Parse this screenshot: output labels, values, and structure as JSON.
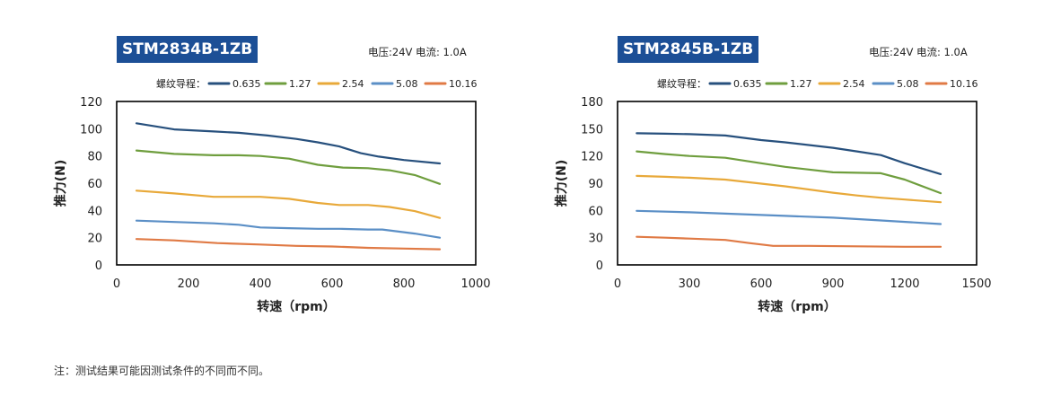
{
  "note": "注：测试结果可能因测试条件的不同而不同。",
  "legend_prefix": "螺纹导程：",
  "charts": [
    {
      "type": "line",
      "title": "STM2834B-1ZB",
      "spec": "电压:24V  电流: 1.0A",
      "xlabel": "转速（rpm）",
      "ylabel": "推力(N)",
      "xlim": [
        0,
        1000
      ],
      "ylim": [
        0,
        120
      ],
      "xticks": [
        0,
        200,
        400,
        600,
        800,
        1000
      ],
      "yticks": [
        0,
        20,
        40,
        60,
        80,
        100,
        120
      ],
      "grid": false,
      "legend": "top",
      "series": [
        {
          "name": "0.635",
          "color": "#27507d",
          "x": [
            55,
            160,
            270,
            340,
            420,
            500,
            560,
            620,
            680,
            730,
            800,
            900
          ],
          "y": [
            104,
            99.5,
            98,
            97,
            95,
            92.5,
            90,
            87,
            82,
            79.5,
            77,
            74.5
          ]
        },
        {
          "name": "1.27",
          "color": "#6f9e3e",
          "x": [
            55,
            160,
            270,
            340,
            400,
            480,
            560,
            630,
            700,
            760,
            830,
            900
          ],
          "y": [
            84,
            81.5,
            80.5,
            80.5,
            80,
            78,
            73.5,
            71.5,
            71,
            69.5,
            66,
            59.5
          ]
        },
        {
          "name": "2.54",
          "color": "#e8a93a",
          "x": [
            55,
            160,
            270,
            340,
            400,
            480,
            560,
            620,
            700,
            760,
            830,
            900
          ],
          "y": [
            54.5,
            52.5,
            50,
            50,
            50,
            48.5,
            45.5,
            44,
            44,
            42.5,
            39.5,
            34.5
          ]
        },
        {
          "name": "5.08",
          "color": "#5b8fc6",
          "x": [
            55,
            160,
            270,
            340,
            400,
            480,
            560,
            620,
            700,
            740,
            830,
            900
          ],
          "y": [
            32.5,
            31.5,
            30.5,
            29.5,
            27.5,
            27,
            26.5,
            26.5,
            26,
            26,
            23,
            20
          ]
        },
        {
          "name": "10.16",
          "color": "#e07a45",
          "x": [
            55,
            160,
            280,
            400,
            500,
            600,
            700,
            800,
            900
          ],
          "y": [
            19,
            18,
            16,
            15,
            14,
            13.5,
            12.5,
            12,
            11.5
          ]
        }
      ]
    },
    {
      "type": "line",
      "title": "STM2845B-1ZB",
      "spec": "电压:24V  电流: 1.0A",
      "xlabel": "转速（rpm）",
      "ylabel": "推力(N)",
      "xlim": [
        0,
        1500
      ],
      "ylim": [
        0,
        180
      ],
      "xticks": [
        0,
        300,
        600,
        900,
        1200,
        1500
      ],
      "yticks": [
        0,
        30,
        60,
        90,
        120,
        150,
        180
      ],
      "grid": false,
      "legend": "top",
      "series": [
        {
          "name": "0.635",
          "color": "#27507d",
          "x": [
            80,
            200,
            300,
            450,
            600,
            700,
            900,
            1000,
            1100,
            1200,
            1350
          ],
          "y": [
            145,
            144.5,
            144,
            142.5,
            137.5,
            135,
            129,
            125,
            121,
            112,
            100
          ]
        },
        {
          "name": "1.27",
          "color": "#6f9e3e",
          "x": [
            80,
            200,
            300,
            450,
            600,
            700,
            900,
            1000,
            1100,
            1200,
            1350
          ],
          "y": [
            125,
            122,
            120,
            118,
            112,
            108,
            102,
            101.5,
            101,
            94,
            79
          ]
        },
        {
          "name": "2.54",
          "color": "#e8a93a",
          "x": [
            80,
            200,
            300,
            450,
            600,
            700,
            900,
            1000,
            1100,
            1200,
            1350
          ],
          "y": [
            98,
            97,
            96,
            94,
            89.5,
            86.5,
            79.5,
            76.5,
            74,
            72,
            69
          ]
        },
        {
          "name": "5.08",
          "color": "#5b8fc6",
          "x": [
            80,
            300,
            500,
            700,
            900,
            1100,
            1350
          ],
          "y": [
            59.5,
            58,
            56,
            54,
            52,
            49,
            45
          ]
        },
        {
          "name": "10.16",
          "color": "#e07a45",
          "x": [
            80,
            200,
            300,
            450,
            550,
            650,
            800,
            1000,
            1200,
            1350
          ],
          "y": [
            31,
            30,
            29,
            27.5,
            24,
            21,
            21,
            20.5,
            20,
            20
          ]
        }
      ]
    }
  ]
}
